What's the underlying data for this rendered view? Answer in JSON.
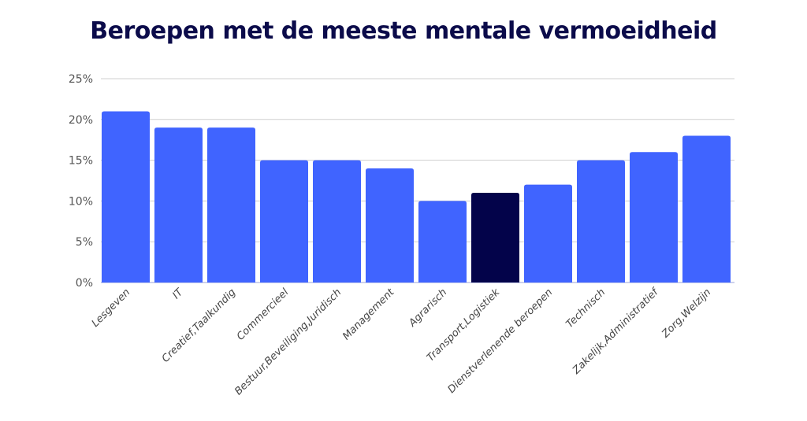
{
  "chart_data": {
    "type": "bar",
    "title": "Beroepen met de meeste mentale vermoeidheid",
    "xlabel": "",
    "ylabel": "",
    "ylim": [
      0,
      25
    ],
    "yticks": [
      "0%",
      "5%",
      "10%",
      "15%",
      "20%",
      "25%"
    ],
    "grid": true,
    "categories": [
      "Lesgeven",
      "IT",
      "Creatief,Taalkundig",
      "Commercieel",
      "Bestuur,Beveiliging,Juridisch",
      "Management",
      "Agrarisch",
      "Transport,Logistiek",
      "Dienstverlenende beroepen",
      "Technisch",
      "Zakelijk,Administratief",
      "Zorg,Welzijn"
    ],
    "values": [
      21,
      19,
      19,
      15,
      15,
      14,
      10,
      11,
      12,
      15,
      16,
      18
    ],
    "colors": {
      "default": "#4064ff",
      "highlight": "#03034a"
    },
    "highlight_index": 7
  }
}
